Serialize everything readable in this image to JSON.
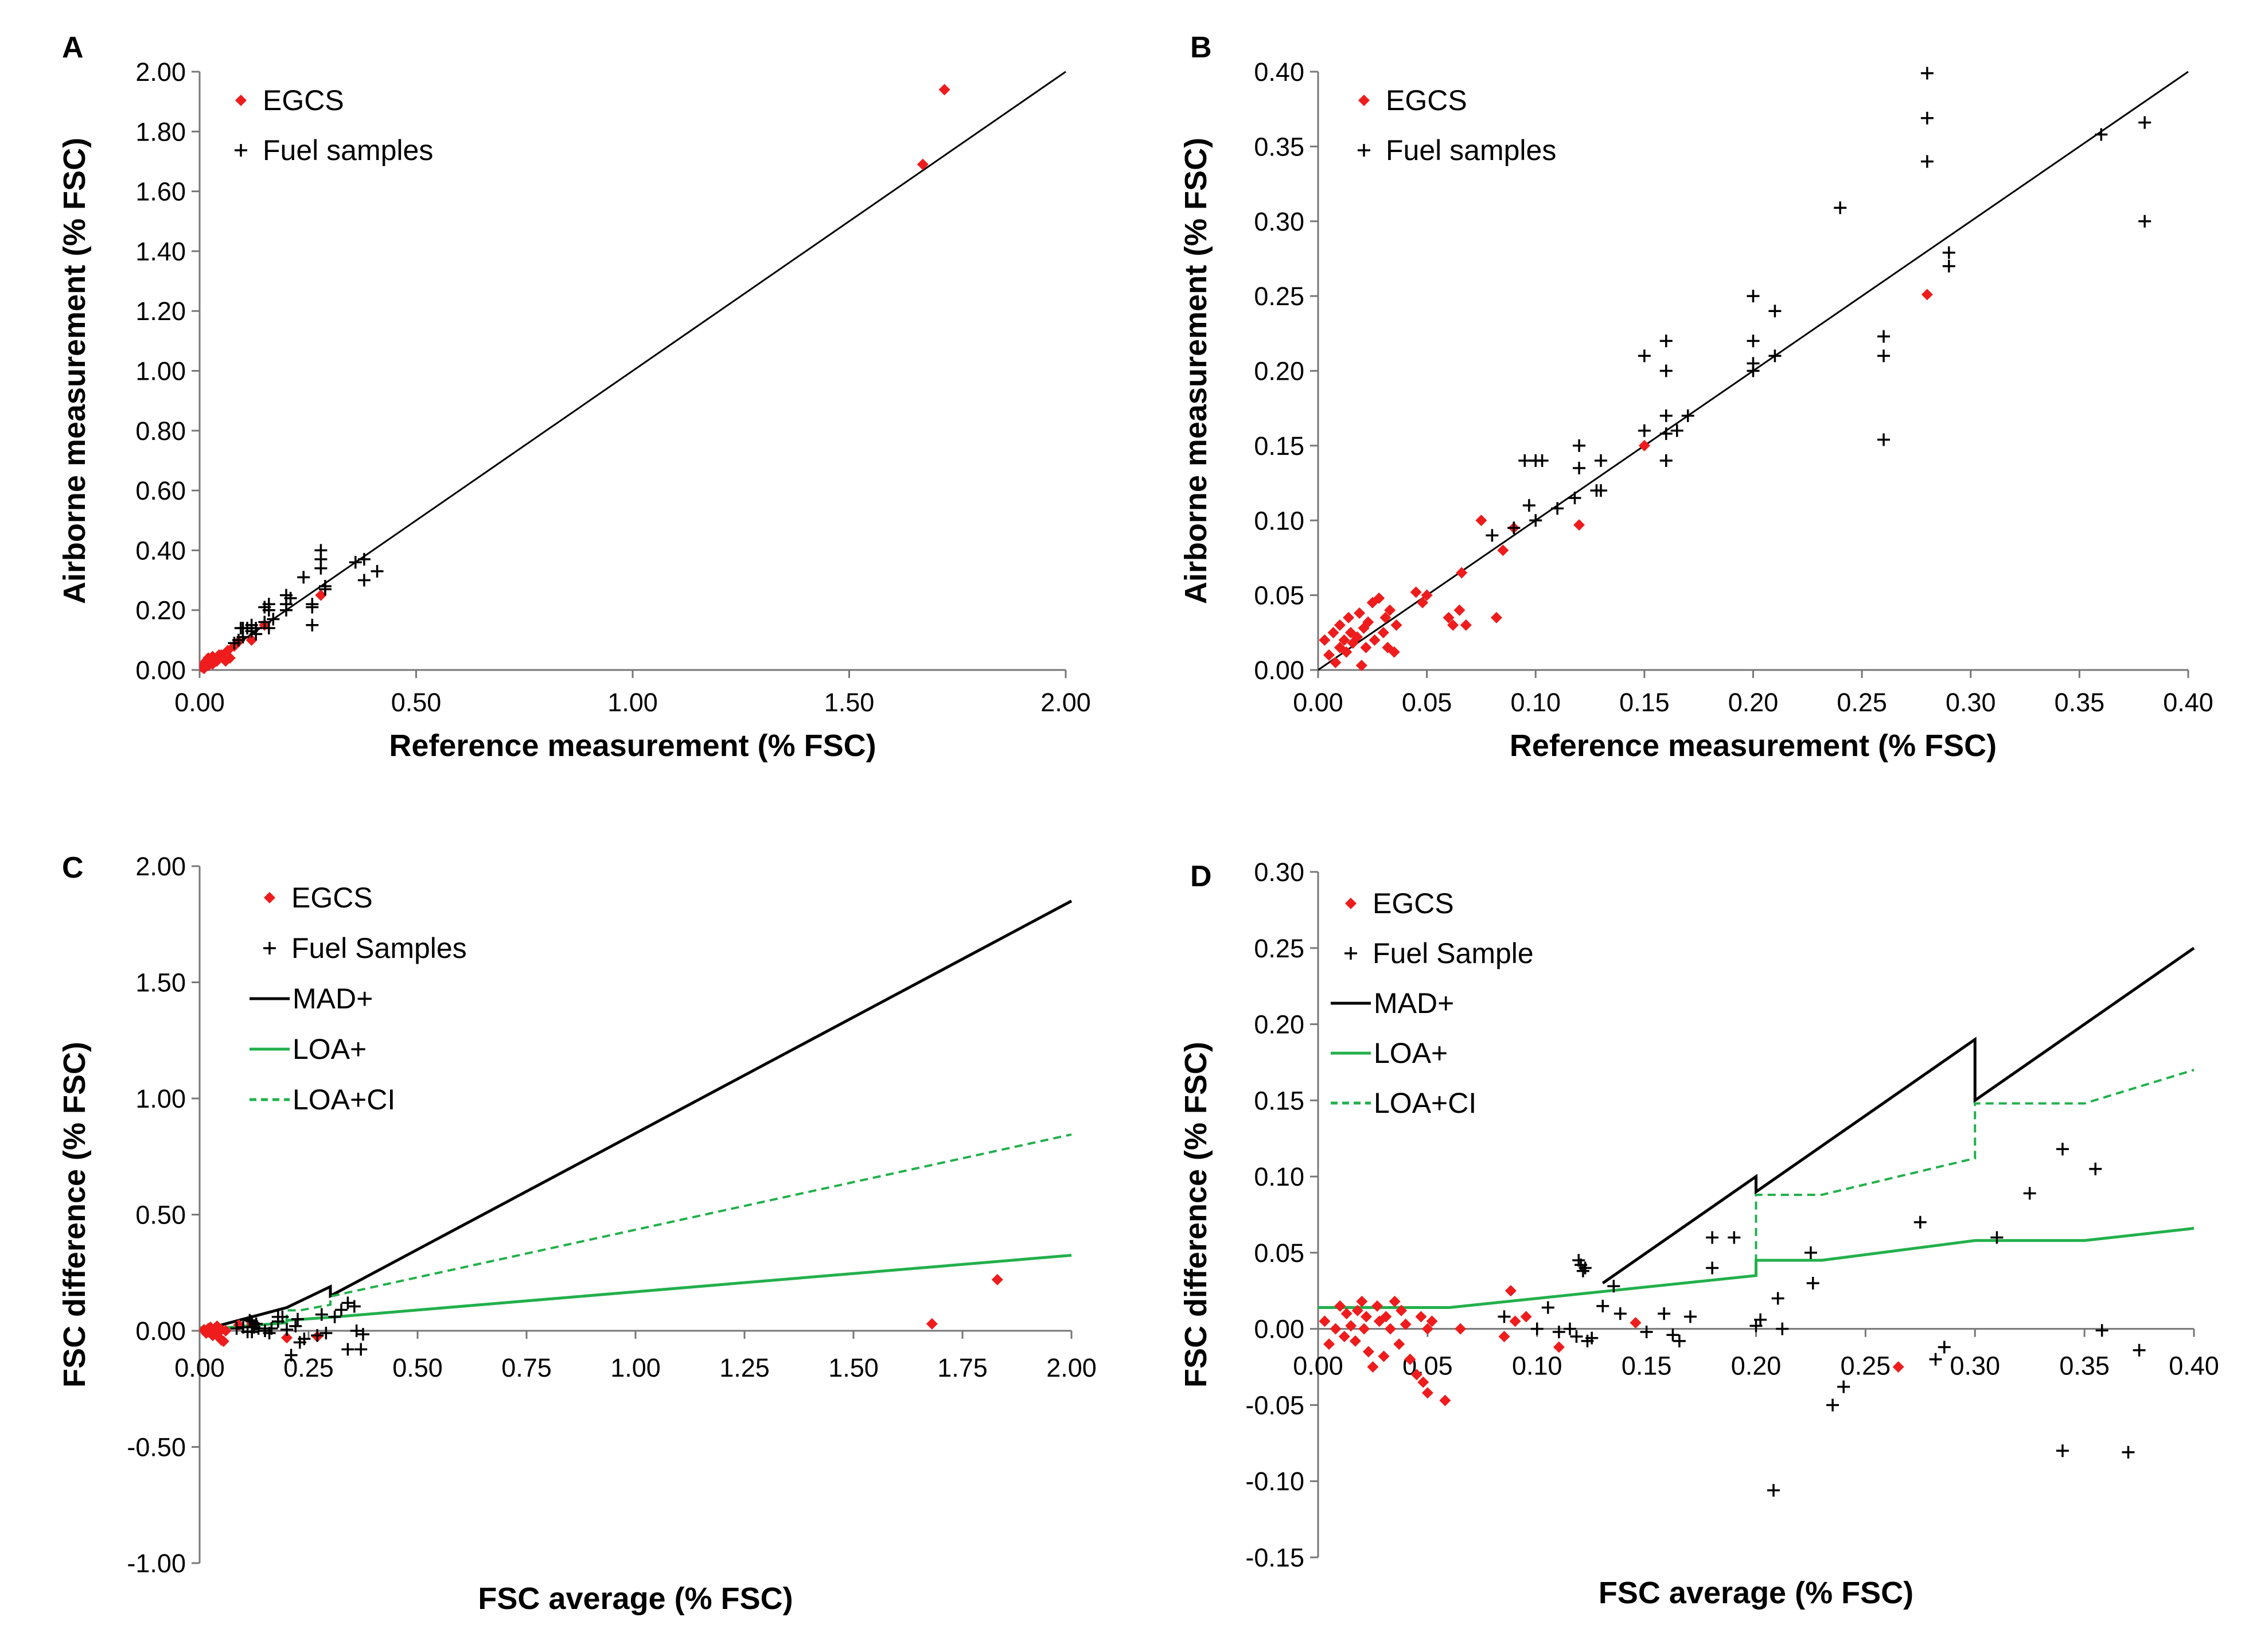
{
  "chart_data": [
    {
      "id": "A",
      "type": "scatter",
      "panel_label": "A",
      "xlabel": "Reference measurement (% FSC)",
      "ylabel": "Airborne measurement (% FSC)",
      "xlim": [
        0,
        2.0
      ],
      "ylim": [
        0,
        2.0
      ],
      "xticks": [
        "0.00",
        "0.50",
        "1.00",
        "1.50",
        "2.00"
      ],
      "xtick_values": [
        0,
        0.5,
        1.0,
        1.5,
        2.0
      ],
      "yticks": [
        "0.00",
        "0.20",
        "0.40",
        "0.60",
        "0.80",
        "1.00",
        "1.20",
        "1.40",
        "1.60",
        "1.80",
        "2.00"
      ],
      "ytick_values": [
        0,
        0.2,
        0.4,
        0.6,
        0.8,
        1.0,
        1.2,
        1.4,
        1.6,
        1.8,
        2.0
      ],
      "legend_position": "top-left",
      "lines": [
        {
          "style": "identity",
          "color": "#000000",
          "x": [
            0,
            2.0
          ],
          "y": [
            0,
            2.0
          ]
        }
      ],
      "series": [
        {
          "name": "EGCS",
          "marker": "diamond",
          "color": "#ee1c1c",
          "x": [
            0.005,
            0.01,
            0.01,
            0.015,
            0.02,
            0.02,
            0.025,
            0.03,
            0.03,
            0.035,
            0.04,
            0.045,
            0.05,
            0.06,
            0.065,
            0.07,
            0.08,
            0.09,
            0.12,
            0.15,
            0.28,
            1.67,
            1.72
          ],
          "y": [
            0.01,
            0.02,
            0.005,
            0.03,
            0.015,
            0.04,
            0.025,
            0.045,
            0.02,
            0.035,
            0.03,
            0.05,
            0.05,
            0.03,
            0.065,
            0.04,
            0.08,
            0.095,
            0.1,
            0.15,
            0.25,
            1.69,
            1.94
          ]
        },
        {
          "name": "Fuel samples",
          "marker": "plus",
          "color": "#000000",
          "x": [
            0.08,
            0.09,
            0.095,
            0.1,
            0.1,
            0.11,
            0.12,
            0.12,
            0.13,
            0.13,
            0.15,
            0.15,
            0.16,
            0.16,
            0.16,
            0.17,
            0.2,
            0.2,
            0.2,
            0.21,
            0.24,
            0.26,
            0.26,
            0.26,
            0.28,
            0.28,
            0.28,
            0.29,
            0.29,
            0.36,
            0.38,
            0.38,
            0.41
          ],
          "y": [
            0.09,
            0.1,
            0.14,
            0.11,
            0.14,
            0.14,
            0.15,
            0.13,
            0.14,
            0.12,
            0.21,
            0.16,
            0.22,
            0.2,
            0.14,
            0.17,
            0.25,
            0.22,
            0.2,
            0.24,
            0.31,
            0.22,
            0.21,
            0.15,
            0.4,
            0.37,
            0.34,
            0.28,
            0.27,
            0.36,
            0.37,
            0.3,
            0.33
          ]
        }
      ]
    },
    {
      "id": "B",
      "type": "scatter",
      "panel_label": "B",
      "xlabel": "Reference measurement (% FSC)",
      "ylabel": "Airborne measurement (% FSC)",
      "xlim": [
        0,
        0.4
      ],
      "ylim": [
        0,
        0.4
      ],
      "xticks": [
        "0.00",
        "0.05",
        "0.10",
        "0.15",
        "0.20",
        "0.25",
        "0.30",
        "0.35",
        "0.40"
      ],
      "xtick_values": [
        0,
        0.05,
        0.1,
        0.15,
        0.2,
        0.25,
        0.3,
        0.35,
        0.4
      ],
      "yticks": [
        "0.00",
        "0.05",
        "0.10",
        "0.15",
        "0.20",
        "0.25",
        "0.30",
        "0.35",
        "0.40"
      ],
      "ytick_values": [
        0,
        0.05,
        0.1,
        0.15,
        0.2,
        0.25,
        0.3,
        0.35,
        0.4
      ],
      "legend_position": "top-left",
      "lines": [
        {
          "style": "identity",
          "color": "#000000",
          "x": [
            0,
            0.4
          ],
          "y": [
            0,
            0.4
          ]
        }
      ],
      "series": [
        {
          "name": "EGCS",
          "marker": "diamond",
          "color": "#ee1c1c",
          "x": [
            0.003,
            0.005,
            0.007,
            0.008,
            0.01,
            0.01,
            0.012,
            0.013,
            0.014,
            0.015,
            0.016,
            0.018,
            0.019,
            0.02,
            0.021,
            0.022,
            0.023,
            0.025,
            0.026,
            0.028,
            0.03,
            0.031,
            0.032,
            0.033,
            0.035,
            0.036,
            0.045,
            0.048,
            0.05,
            0.06,
            0.062,
            0.065,
            0.066,
            0.068,
            0.075,
            0.082,
            0.085,
            0.09,
            0.12,
            0.15,
            0.28
          ],
          "y": [
            0.02,
            0.01,
            0.025,
            0.005,
            0.015,
            0.03,
            0.02,
            0.012,
            0.035,
            0.025,
            0.018,
            0.022,
            0.038,
            0.003,
            0.028,
            0.015,
            0.032,
            0.045,
            0.02,
            0.048,
            0.025,
            0.035,
            0.015,
            0.04,
            0.012,
            0.03,
            0.052,
            0.045,
            0.05,
            0.035,
            0.03,
            0.04,
            0.065,
            0.03,
            0.1,
            0.035,
            0.08,
            0.095,
            0.097,
            0.15,
            0.251
          ]
        },
        {
          "name": "Fuel samples",
          "marker": "plus",
          "color": "#000000",
          "x": [
            0.08,
            0.09,
            0.095,
            0.097,
            0.1,
            0.1,
            0.1,
            0.103,
            0.11,
            0.118,
            0.12,
            0.12,
            0.128,
            0.13,
            0.13,
            0.15,
            0.15,
            0.16,
            0.16,
            0.16,
            0.16,
            0.16,
            0.165,
            0.17,
            0.2,
            0.2,
            0.2,
            0.2,
            0.21,
            0.21,
            0.24,
            0.26,
            0.26,
            0.26,
            0.28,
            0.28,
            0.28,
            0.29,
            0.29,
            0.36,
            0.38,
            0.38
          ],
          "y": [
            0.09,
            0.095,
            0.14,
            0.11,
            0.14,
            0.14,
            0.1,
            0.14,
            0.108,
            0.115,
            0.15,
            0.135,
            0.12,
            0.12,
            0.14,
            0.21,
            0.16,
            0.22,
            0.2,
            0.17,
            0.158,
            0.14,
            0.16,
            0.17,
            0.25,
            0.22,
            0.205,
            0.2,
            0.24,
            0.21,
            0.309,
            0.223,
            0.21,
            0.154,
            0.399,
            0.369,
            0.34,
            0.279,
            0.27,
            0.358,
            0.366,
            0.3
          ]
        }
      ]
    },
    {
      "id": "C",
      "type": "scatter",
      "panel_label": "C",
      "xlabel": "FSC average (% FSC)",
      "ylabel": "FSC difference  (% FSC)",
      "xlim": [
        0,
        2.0
      ],
      "ylim": [
        -1.0,
        2.0
      ],
      "xticks": [
        "0.00",
        "0.25",
        "0.50",
        "0.75",
        "1.00",
        "1.25",
        "1.50",
        "1.75",
        "2.00"
      ],
      "xtick_values": [
        0,
        0.25,
        0.5,
        0.75,
        1.0,
        1.25,
        1.5,
        1.75,
        2.0
      ],
      "yticks": [
        "-1.00",
        "-0.50",
        "0.00",
        "0.50",
        "1.00",
        "1.50",
        "2.00"
      ],
      "ytick_values": [
        -1.0,
        -0.5,
        0,
        0.5,
        1.0,
        1.5,
        2.0
      ],
      "legend_position": "top-left",
      "series": [
        {
          "name": "EGCS",
          "marker": "diamond",
          "color": "#ee1c1c",
          "x": [
            0.01,
            0.015,
            0.02,
            0.02,
            0.025,
            0.03,
            0.03,
            0.035,
            0.04,
            0.04,
            0.045,
            0.05,
            0.05,
            0.055,
            0.06,
            0.09,
            0.12,
            0.2,
            0.27,
            1.68,
            1.83
          ],
          "y": [
            0.005,
            -0.01,
            0.01,
            -0.005,
            0.015,
            0.0,
            -0.02,
            0.01,
            -0.01,
            0.02,
            -0.03,
            0.005,
            -0.04,
            -0.045,
            0.0,
            0.025,
            0.03,
            -0.03,
            -0.025,
            0.03,
            0.22
          ]
        },
        {
          "name": "Fuel Samples",
          "marker": "plus",
          "color": "#000000",
          "x": [
            0.085,
            0.1,
            0.11,
            0.115,
            0.12,
            0.12,
            0.125,
            0.13,
            0.135,
            0.15,
            0.16,
            0.165,
            0.18,
            0.18,
            0.19,
            0.2,
            0.21,
            0.22,
            0.225,
            0.23,
            0.24,
            0.27,
            0.28,
            0.29,
            0.31,
            0.325,
            0.34,
            0.34,
            0.355,
            0.36,
            0.37,
            0.375
          ],
          "y": [
            0.01,
            0.015,
            -0.005,
            0.045,
            0.04,
            -0.005,
            0.015,
            0.03,
            0.01,
            0.0,
            -0.01,
            0.01,
            0.06,
            0.04,
            0.06,
            0.005,
            -0.105,
            0.02,
            0.05,
            -0.05,
            -0.035,
            -0.02,
            0.07,
            -0.01,
            0.06,
            0.09,
            0.12,
            -0.08,
            0.105,
            0.0,
            -0.08,
            -0.015
          ]
        }
      ],
      "lines": [
        {
          "name": "MAD+",
          "style": "solid",
          "color": "#000000",
          "width": 5,
          "x": [
            0.0,
            0.2,
            0.2,
            0.3,
            0.3,
            2.0
          ],
          "y": [
            0.0,
            0.1,
            0.1,
            0.19,
            0.15,
            1.85
          ]
        },
        {
          "name": "LOA+",
          "style": "solid",
          "color": "#22b04b",
          "width": 5,
          "x": [
            0.0,
            0.06,
            0.2,
            0.2,
            0.3,
            2.0
          ],
          "y": [
            0.013,
            0.013,
            0.035,
            0.045,
            0.058,
            0.325
          ]
        },
        {
          "name": "LOA+CI",
          "style": "dashed",
          "color": "#22b04b",
          "width": 4,
          "x": [
            0.2,
            0.2,
            0.23,
            0.3,
            0.3,
            2.0
          ],
          "y": [
            0.035,
            0.088,
            0.088,
            0.112,
            0.148,
            0.845
          ]
        }
      ]
    },
    {
      "id": "D",
      "type": "scatter",
      "panel_label": "D",
      "xlabel": "FSC average (% FSC)",
      "ylabel": "FSC difference  (% FSC)",
      "xlim": [
        0,
        0.4
      ],
      "ylim": [
        -0.15,
        0.3
      ],
      "xticks": [
        "0.00",
        "0.05",
        "0.10",
        "0.15",
        "0.20",
        "0.25",
        "0.30",
        "0.35",
        "0.40"
      ],
      "xtick_values": [
        0,
        0.05,
        0.1,
        0.15,
        0.2,
        0.25,
        0.3,
        0.35,
        0.4
      ],
      "yticks": [
        "-0.15",
        "-0.10",
        "-0.05",
        "0.00",
        "0.05",
        "0.10",
        "0.15",
        "0.20",
        "0.25",
        "0.30"
      ],
      "ytick_values": [
        -0.15,
        -0.1,
        -0.05,
        0,
        0.05,
        0.1,
        0.15,
        0.2,
        0.25,
        0.3
      ],
      "legend_position": "top-left",
      "series": [
        {
          "name": "EGCS",
          "marker": "diamond",
          "color": "#ee1c1c",
          "x": [
            0.003,
            0.005,
            0.008,
            0.01,
            0.012,
            0.013,
            0.015,
            0.017,
            0.018,
            0.02,
            0.021,
            0.022,
            0.023,
            0.025,
            0.027,
            0.028,
            0.03,
            0.031,
            0.033,
            0.035,
            0.037,
            0.038,
            0.04,
            0.042,
            0.045,
            0.047,
            0.048,
            0.05,
            0.05,
            0.052,
            0.058,
            0.065,
            0.085,
            0.088,
            0.09,
            0.095,
            0.11,
            0.145,
            0.265
          ],
          "y": [
            0.005,
            -0.01,
            0.0,
            0.015,
            -0.005,
            0.01,
            0.002,
            -0.008,
            0.012,
            0.018,
            0.0,
            0.008,
            -0.015,
            -0.025,
            0.015,
            0.005,
            -0.018,
            0.008,
            0.0,
            0.018,
            -0.01,
            0.012,
            0.003,
            -0.02,
            -0.03,
            0.008,
            -0.035,
            -0.042,
            0.0,
            0.005,
            -0.047,
            0.0,
            -0.005,
            0.025,
            0.005,
            0.008,
            -0.012,
            0.004,
            -0.025
          ]
        },
        {
          "name": "Fuel Sample",
          "marker": "plus",
          "color": "#000000",
          "x": [
            0.085,
            0.1,
            0.105,
            0.11,
            0.115,
            0.118,
            0.119,
            0.12,
            0.121,
            0.122,
            0.123,
            0.125,
            0.13,
            0.135,
            0.138,
            0.15,
            0.158,
            0.162,
            0.165,
            0.17,
            0.18,
            0.18,
            0.19,
            0.2,
            0.202,
            0.208,
            0.21,
            0.212,
            0.225,
            0.226,
            0.235,
            0.24,
            0.275,
            0.282,
            0.286,
            0.31,
            0.325,
            0.34,
            0.34,
            0.355,
            0.358,
            0.37,
            0.375
          ],
          "y": [
            0.008,
            0.0,
            0.014,
            -0.002,
            0.0,
            -0.005,
            0.045,
            0.042,
            0.038,
            0.04,
            -0.008,
            -0.006,
            0.015,
            0.028,
            0.01,
            -0.002,
            0.01,
            -0.004,
            -0.008,
            0.008,
            0.06,
            0.04,
            0.06,
            0.002,
            0.006,
            -0.106,
            0.02,
            0.0,
            0.05,
            0.03,
            -0.05,
            -0.038,
            0.07,
            -0.02,
            -0.012,
            0.06,
            0.089,
            0.118,
            -0.08,
            0.105,
            -0.001,
            -0.081,
            -0.014
          ]
        }
      ],
      "lines": [
        {
          "name": "MAD+",
          "style": "solid",
          "color": "#000000",
          "width": 5,
          "x": [
            0.13,
            0.2,
            0.2,
            0.3,
            0.3,
            0.4
          ],
          "y": [
            0.03,
            0.1,
            0.09,
            0.19,
            0.15,
            0.25
          ]
        },
        {
          "name": "LOA+",
          "style": "solid",
          "color": "#22b04b",
          "width": 5,
          "x": [
            0.0,
            0.06,
            0.2,
            0.2,
            0.23,
            0.3,
            0.35,
            0.4
          ],
          "y": [
            0.014,
            0.014,
            0.035,
            0.045,
            0.045,
            0.058,
            0.058,
            0.066
          ]
        },
        {
          "name": "LOA+CI",
          "style": "dashed",
          "color": "#22b04b",
          "width": 4,
          "x": [
            0.2,
            0.2,
            0.23,
            0.3,
            0.3,
            0.35,
            0.4
          ],
          "y": [
            0.035,
            0.088,
            0.088,
            0.112,
            0.148,
            0.148,
            0.17
          ]
        }
      ]
    }
  ]
}
